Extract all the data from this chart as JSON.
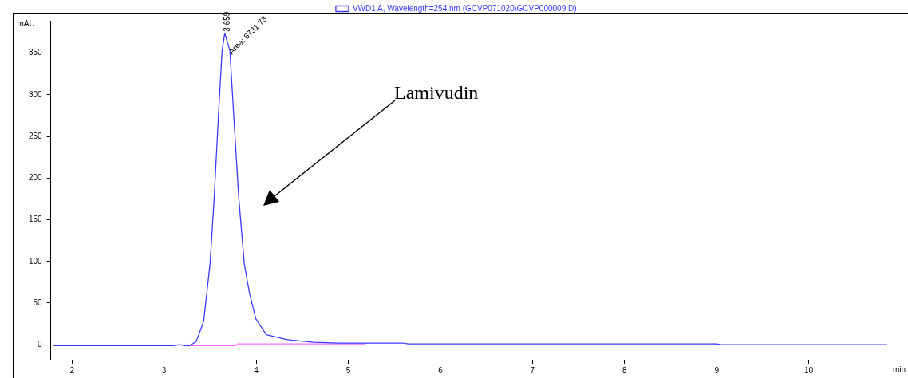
{
  "chart_data": {
    "type": "line",
    "ylabel": "mAU",
    "xlabel": "min",
    "xlim": [
      1.77,
      10.87
    ],
    "xticks": [
      2,
      3,
      4,
      5,
      6,
      7,
      8,
      9,
      10
    ],
    "ylim": [
      -18,
      389
    ],
    "yticks": [
      0,
      50,
      100,
      150,
      200,
      250,
      300,
      350
    ],
    "grid": false,
    "legend": "top",
    "marker": "none",
    "line_style": "solid",
    "series": [
      {
        "name": "VWD1 A, Wavelength=254 nm (GCVP071020\\GCVP000009.D)",
        "color": "#3a3aff",
        "x": [
          1.8,
          3.1,
          3.17,
          3.22,
          3.28,
          3.35,
          3.43,
          3.5,
          3.545,
          3.59,
          3.63,
          3.659,
          3.715,
          3.757,
          3.81,
          3.87,
          3.925,
          3.997,
          4.11,
          4.34,
          4.62,
          4.9,
          5.19,
          5.6,
          5.65,
          9.0,
          9.05,
          10.85
        ],
        "values": [
          -1,
          -1,
          0,
          -1,
          -1,
          4,
          28,
          98,
          178,
          274,
          353,
          374,
          353,
          274,
          178,
          98,
          63,
          31,
          12,
          6,
          3,
          2,
          2,
          2,
          1,
          1,
          0,
          0
        ]
      },
      {
        "color": "#ff66ff",
        "x": [
          3.28,
          3.78,
          3.8,
          5.18
        ],
        "values": [
          -1,
          -1,
          1,
          1
        ]
      }
    ],
    "annotations": [
      {
        "text": "3.659",
        "x": 3.659,
        "y": 374
      },
      {
        "text": "Area: 6731.73",
        "x": 3.72,
        "y": 350
      },
      "Lamivudin"
    ]
  }
}
